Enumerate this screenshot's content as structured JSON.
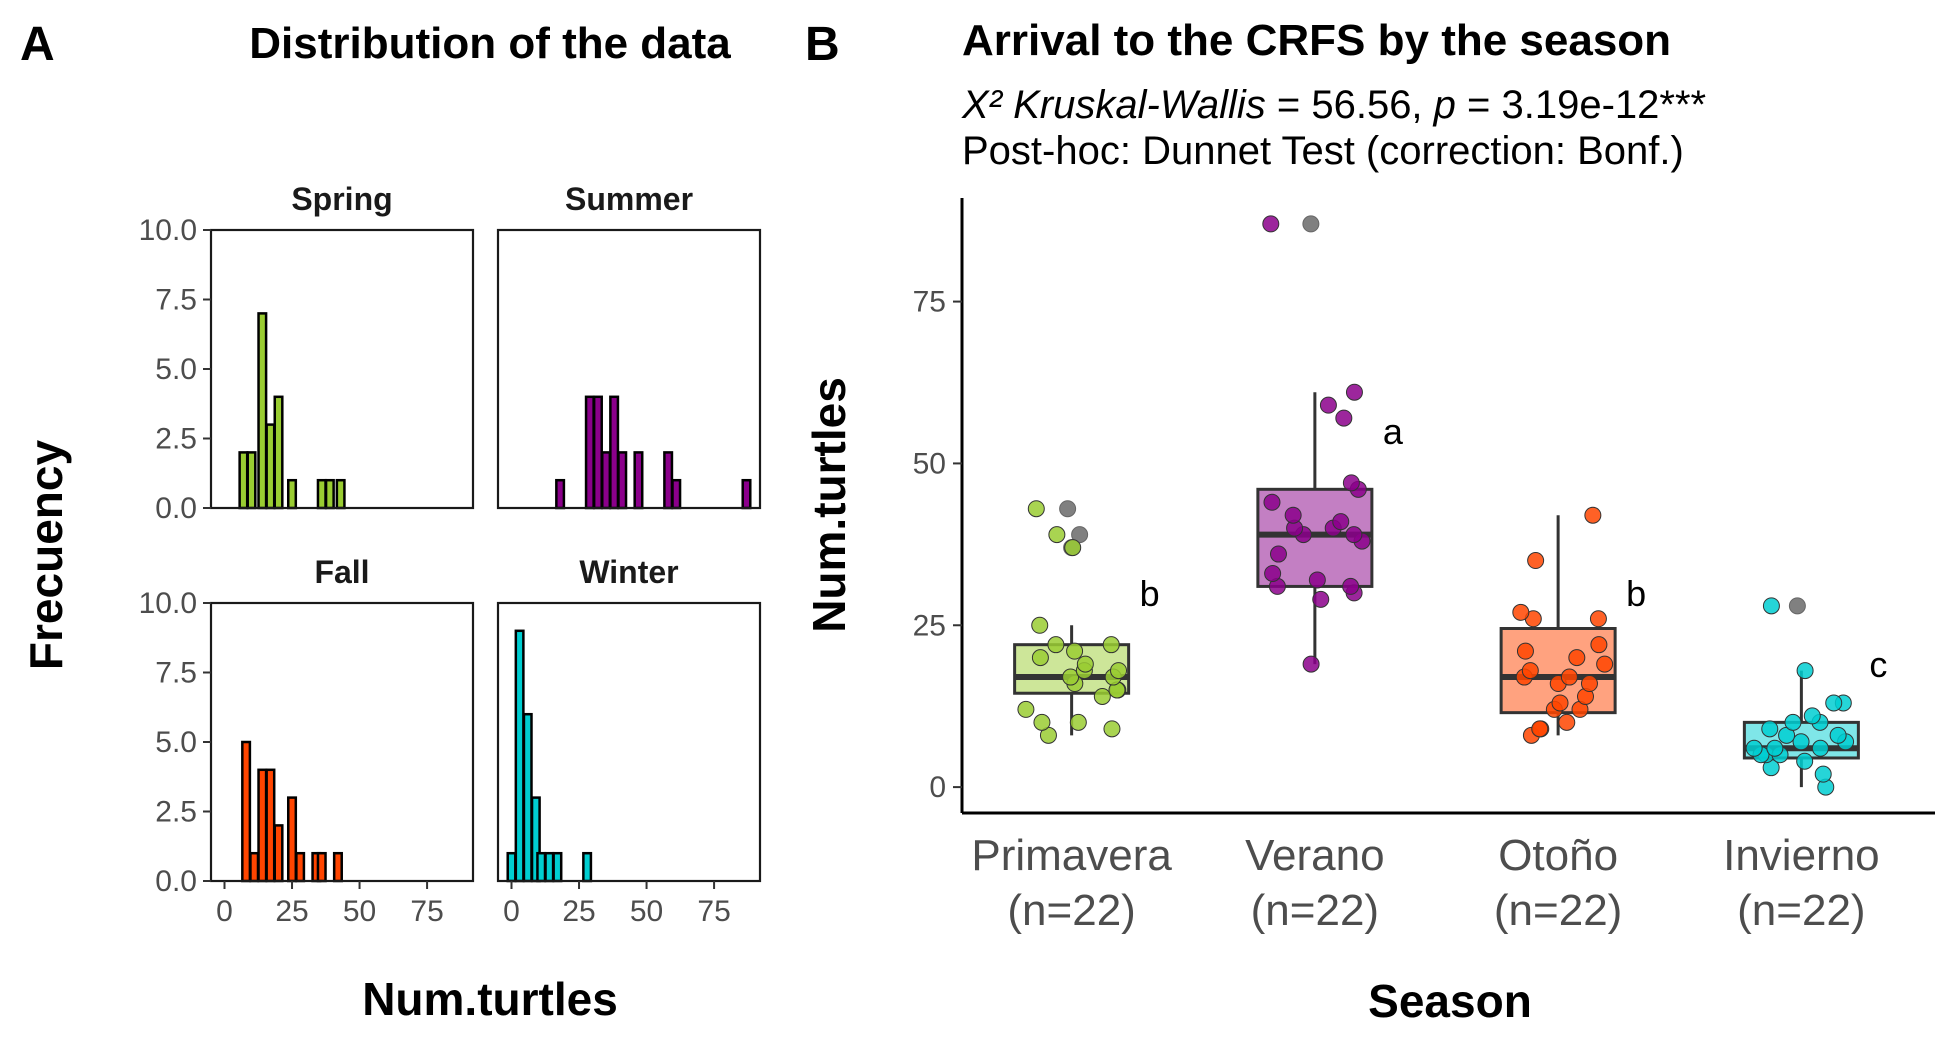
{
  "chart_data": [
    {
      "type": "bar",
      "panel_label": "A",
      "title": "Distribution of the data",
      "xlabel": "Num.turtles",
      "ylabel": "Frecuency",
      "ylim": [
        0,
        10
      ],
      "y_ticks": [
        "0.0",
        "2.5",
        "5.0",
        "7.5",
        "10.0"
      ],
      "xlim": [
        -5,
        92
      ],
      "x_ticks": [
        "0",
        "25",
        "50",
        "75"
      ],
      "bin_width": 2.8,
      "facets": [
        {
          "name": "Spring",
          "color": "#9ACD32",
          "bins": [
            {
              "x": 7,
              "count": 2
            },
            {
              "x": 10,
              "count": 2
            },
            {
              "x": 14,
              "count": 7
            },
            {
              "x": 17,
              "count": 3
            },
            {
              "x": 20,
              "count": 4
            },
            {
              "x": 25,
              "count": 1
            },
            {
              "x": 36,
              "count": 1
            },
            {
              "x": 39,
              "count": 1
            },
            {
              "x": 43,
              "count": 1
            }
          ]
        },
        {
          "name": "Summer",
          "color": "#8B008B",
          "bins": [
            {
              "x": 18,
              "count": 1
            },
            {
              "x": 29,
              "count": 4
            },
            {
              "x": 32,
              "count": 4
            },
            {
              "x": 35,
              "count": 2
            },
            {
              "x": 38,
              "count": 4
            },
            {
              "x": 41,
              "count": 2
            },
            {
              "x": 47,
              "count": 2
            },
            {
              "x": 58,
              "count": 2
            },
            {
              "x": 61,
              "count": 1
            },
            {
              "x": 87,
              "count": 1
            }
          ]
        },
        {
          "name": "Fall",
          "color": "#FF4500",
          "bins": [
            {
              "x": 8,
              "count": 5
            },
            {
              "x": 11,
              "count": 1
            },
            {
              "x": 14,
              "count": 4
            },
            {
              "x": 17,
              "count": 4
            },
            {
              "x": 20,
              "count": 2
            },
            {
              "x": 25,
              "count": 3
            },
            {
              "x": 28,
              "count": 1
            },
            {
              "x": 34,
              "count": 1
            },
            {
              "x": 36,
              "count": 1
            },
            {
              "x": 42,
              "count": 1
            }
          ]
        },
        {
          "name": "Winter",
          "color": "#00CED1",
          "bins": [
            {
              "x": 0,
              "count": 1
            },
            {
              "x": 3,
              "count": 9
            },
            {
              "x": 6,
              "count": 6
            },
            {
              "x": 9,
              "count": 3
            },
            {
              "x": 11,
              "count": 1
            },
            {
              "x": 14,
              "count": 1
            },
            {
              "x": 17,
              "count": 1
            },
            {
              "x": 28,
              "count": 1
            }
          ]
        }
      ]
    },
    {
      "type": "box",
      "panel_label": "B",
      "title": "Arrival to the CRFS by the season",
      "subtitle_line1": {
        "stat_italic": "X² Kruskal-Wallis",
        "stat_value": " = 56.56, ",
        "p_italic": "p",
        "p_value": " = 3.19e-12***"
      },
      "subtitle_line2": "Post-hoc:  Dunnet Test (correction: Bonf.)",
      "xlabel": "Season",
      "ylabel": "Num.turtles",
      "ylim": [
        -4,
        91
      ],
      "y_ticks": [
        0,
        25,
        50,
        75
      ],
      "outlier_color": "#808080",
      "groups": [
        {
          "name": "Primavera",
          "n_label": "(n=22)",
          "letter": "b",
          "color": "#9ACD32",
          "fill": "#CDE699",
          "q1": 14.5,
          "median": 17,
          "q3": 22,
          "whisker_low": 8,
          "whisker_high": 25,
          "outliers": [
            43,
            39,
            37
          ],
          "points": [
            8,
            9,
            10,
            10,
            12,
            14,
            15,
            15,
            16,
            17,
            17,
            18,
            18,
            19,
            20,
            21,
            22,
            22,
            25,
            37,
            39,
            43
          ]
        },
        {
          "name": "Verano",
          "n_label": "(n=22)",
          "letter": "a",
          "color": "#8B008B",
          "fill": "#C37FC3",
          "q1": 31,
          "median": 39,
          "q3": 46,
          "whisker_low": 19,
          "whisker_high": 61,
          "outliers": [
            87
          ],
          "points": [
            19,
            29,
            30,
            31,
            31,
            32,
            33,
            36,
            38,
            39,
            39,
            40,
            40,
            41,
            42,
            44,
            46,
            47,
            57,
            59,
            61,
            87
          ]
        },
        {
          "name": "Otoño",
          "n_label": "(n=22)",
          "letter": "b",
          "color": "#FF4500",
          "fill": "#FFA27F",
          "q1": 11.5,
          "median": 17,
          "q3": 24.5,
          "whisker_low": 8,
          "whisker_high": 42,
          "outliers": [],
          "points": [
            8,
            9,
            9,
            10,
            12,
            12,
            13,
            14,
            16,
            16,
            17,
            17,
            18,
            19,
            20,
            21,
            22,
            26,
            26,
            27,
            35,
            42
          ]
        },
        {
          "name": "Invierno",
          "n_label": "(n=22)",
          "letter": "c",
          "color": "#00CED1",
          "fill": "#7FE6E8",
          "q1": 4.5,
          "median": 6,
          "q3": 10,
          "whisker_low": 0,
          "whisker_high": 18,
          "outliers": [
            28
          ],
          "points": [
            0,
            2,
            3,
            4,
            5,
            5,
            5,
            6,
            6,
            6,
            7,
            7,
            8,
            8,
            9,
            10,
            10,
            11,
            13,
            13,
            18,
            28
          ]
        }
      ]
    }
  ]
}
